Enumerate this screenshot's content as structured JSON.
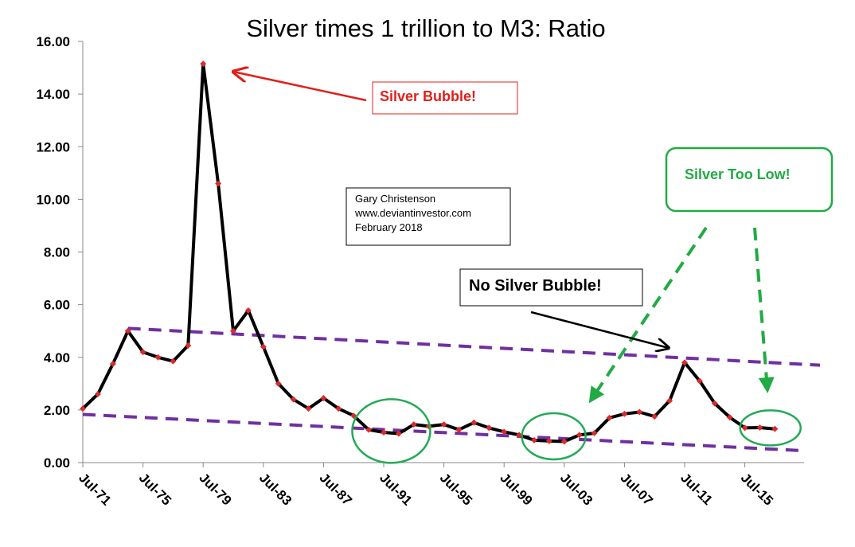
{
  "chart_data": {
    "type": "line",
    "title": "Silver times 1 trillion to M3: Ratio",
    "xlabel": "",
    "ylabel": "",
    "ylim": [
      0,
      16
    ],
    "yticks": [
      "0.00",
      "2.00",
      "4.00",
      "6.00",
      "8.00",
      "10.00",
      "12.00",
      "14.00",
      "16.00"
    ],
    "xtick_labels": [
      "Jul-71",
      "Jul-75",
      "Jul-79",
      "Jul-83",
      "Jul-87",
      "Jul-91",
      "Jul-95",
      "Jul-99",
      "Jul-03",
      "Jul-07",
      "Jul-11",
      "Jul-15"
    ],
    "x_years": [
      1971,
      1972,
      1973,
      1974,
      1975,
      1976,
      1977,
      1978,
      1979,
      1980,
      1981,
      1982,
      1983,
      1984,
      1985,
      1986,
      1987,
      1988,
      1989,
      1990,
      1991,
      1992,
      1993,
      1994,
      1995,
      1996,
      1997,
      1998,
      1999,
      2000,
      2001,
      2002,
      2003,
      2004,
      2005,
      2006,
      2007,
      2008,
      2009,
      2010,
      2011,
      2012,
      2013,
      2014,
      2015,
      2016,
      2017
    ],
    "values": [
      2.05,
      2.6,
      3.75,
      5.0,
      4.2,
      4.0,
      3.85,
      4.45,
      15.15,
      10.6,
      5.0,
      5.78,
      4.4,
      3.0,
      2.4,
      2.05,
      2.45,
      2.05,
      1.78,
      1.25,
      1.15,
      1.1,
      1.45,
      1.38,
      1.45,
      1.25,
      1.52,
      1.32,
      1.17,
      1.05,
      0.85,
      0.82,
      0.8,
      1.05,
      1.12,
      1.7,
      1.85,
      1.92,
      1.75,
      2.35,
      3.8,
      3.1,
      2.25,
      1.72,
      1.32,
      1.33,
      1.28
    ],
    "trendlines": [
      {
        "x": [
          1974,
          2020
        ],
        "y": [
          5.1,
          3.7
        ]
      },
      {
        "x": [
          1971,
          2019
        ],
        "y": [
          1.83,
          0.45
        ]
      }
    ],
    "ellipses": [
      {
        "x": 1991.5,
        "y": 1.2
      },
      {
        "x": 2002.3,
        "y": 1.0
      },
      {
        "x": 2016.7,
        "y": 1.32
      }
    ],
    "colors": {
      "line": "#000000",
      "marker": "#d92b2b",
      "trend": "#7030a0",
      "circle": "#22aa55",
      "bubble_red": "#e0201b",
      "low_green": "#22aa44"
    },
    "legend": "none",
    "grid": false
  },
  "annotations": {
    "silver_bubble": "Silver Bubble!",
    "silver_too_low": "Silver Too Low!",
    "no_silver_bubble": "No Silver Bubble!",
    "credit_lines": [
      "Gary Christenson",
      "www.deviantinvestor.com",
      "February 2018"
    ]
  }
}
